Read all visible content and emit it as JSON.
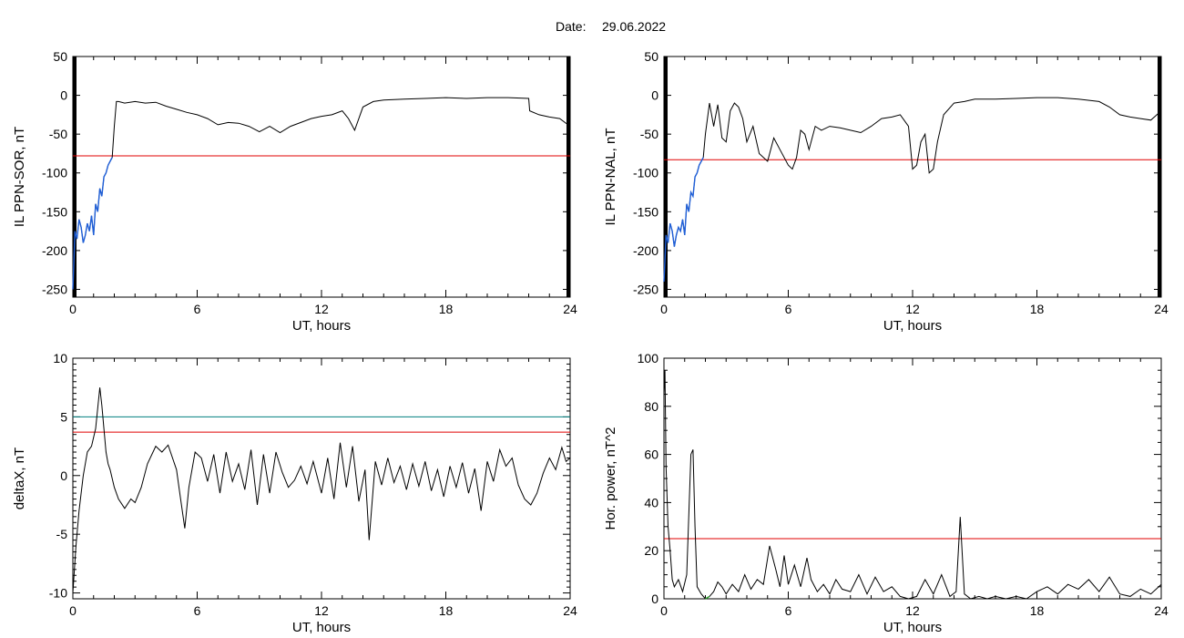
{
  "figure": {
    "title_prefix": "Date:",
    "title_date": "29.06.2022"
  },
  "colors": {
    "data_line": "#000000",
    "blue_segment": "#1f5fd8",
    "green_segment": "#2ca02c",
    "red_threshold": "#e00000",
    "teal_threshold": "#008080"
  },
  "chart_data": [
    {
      "id": "il-sor",
      "type": "line",
      "xlabel": "UT, hours",
      "ylabel": "IL PPN-SOR, nT",
      "xlim": [
        0,
        24
      ],
      "ylim": [
        -260,
        50
      ],
      "xticks": [
        0,
        6,
        12,
        18,
        24
      ],
      "yticks": [
        50,
        0,
        -50,
        -100,
        -150,
        -200,
        -250
      ],
      "hlines": [
        {
          "y": -78,
          "color": "red"
        }
      ],
      "highlight": {
        "color": "blue",
        "x_from": 0,
        "x_to": 1.9
      },
      "x": [
        0,
        0.1,
        0.2,
        0.3,
        0.4,
        0.5,
        0.6,
        0.7,
        0.8,
        0.9,
        1.0,
        1.1,
        1.2,
        1.3,
        1.4,
        1.5,
        1.6,
        1.7,
        1.8,
        1.9,
        2.0,
        2.1,
        2.2,
        2.5,
        3.0,
        3.5,
        4.0,
        4.5,
        5.0,
        5.5,
        6.0,
        6.5,
        7.0,
        7.5,
        8.0,
        8.5,
        9.0,
        9.5,
        10.0,
        10.5,
        11.0,
        11.5,
        12.0,
        12.5,
        13.0,
        13.3,
        13.6,
        14.0,
        14.5,
        15.0,
        16.0,
        17.0,
        18.0,
        19.0,
        20.0,
        21.0,
        22.0,
        22.05,
        22.5,
        23.0,
        23.5,
        24.0
      ],
      "y": [
        -250,
        -175,
        -185,
        -160,
        -170,
        -190,
        -180,
        -165,
        -175,
        -155,
        -180,
        -140,
        -150,
        -120,
        -130,
        -105,
        -100,
        -90,
        -85,
        -80,
        -40,
        -8,
        -8,
        -10,
        -8,
        -10,
        -9,
        -14,
        -18,
        -22,
        -25,
        -30,
        -38,
        -35,
        -36,
        -40,
        -47,
        -40,
        -48,
        -40,
        -35,
        -30,
        -27,
        -25,
        -20,
        -30,
        -45,
        -15,
        -8,
        -6,
        -5,
        -4,
        -3,
        -4,
        -3,
        -3,
        -4,
        -20,
        -25,
        -28,
        -30,
        -40
      ],
      "ticks_step": 0.1
    },
    {
      "id": "il-nal",
      "type": "line",
      "xlabel": "UT, hours",
      "ylabel": "IL PPN-NAL, nT",
      "xlim": [
        0,
        24
      ],
      "ylim": [
        -260,
        50
      ],
      "xticks": [
        0,
        6,
        12,
        18,
        24
      ],
      "yticks": [
        50,
        0,
        -50,
        -100,
        -150,
        -200,
        -250
      ],
      "hlines": [
        {
          "y": -83,
          "color": "red"
        }
      ],
      "highlight": {
        "color": "blue",
        "x_from": 0,
        "x_to": 1.9
      },
      "x": [
        0,
        0.1,
        0.2,
        0.3,
        0.4,
        0.5,
        0.6,
        0.7,
        0.8,
        0.9,
        1.0,
        1.1,
        1.2,
        1.3,
        1.4,
        1.5,
        1.6,
        1.7,
        1.8,
        1.9,
        2.0,
        2.2,
        2.4,
        2.6,
        2.8,
        3.0,
        3.2,
        3.4,
        3.6,
        3.8,
        4.0,
        4.3,
        4.6,
        5.0,
        5.3,
        5.6,
        6.0,
        6.2,
        6.4,
        6.6,
        6.8,
        7.0,
        7.3,
        7.6,
        8.0,
        8.5,
        9.0,
        9.5,
        10.0,
        10.5,
        11.0,
        11.4,
        11.8,
        12.0,
        12.2,
        12.4,
        12.6,
        12.8,
        13.0,
        13.2,
        13.5,
        14.0,
        14.5,
        15.0,
        16.0,
        17.0,
        18.0,
        19.0,
        20.0,
        21.0,
        21.5,
        22.0,
        22.5,
        23.0,
        23.5,
        24.0
      ],
      "y": [
        -240,
        -180,
        -190,
        -165,
        -175,
        -195,
        -180,
        -170,
        -175,
        -160,
        -180,
        -140,
        -150,
        -125,
        -130,
        -105,
        -100,
        -90,
        -85,
        -80,
        -50,
        -10,
        -40,
        -12,
        -55,
        -60,
        -20,
        -10,
        -15,
        -30,
        -60,
        -40,
        -75,
        -85,
        -55,
        -70,
        -90,
        -95,
        -80,
        -45,
        -50,
        -70,
        -40,
        -45,
        -40,
        -42,
        -45,
        -48,
        -40,
        -30,
        -28,
        -25,
        -40,
        -95,
        -90,
        -60,
        -50,
        -100,
        -95,
        -60,
        -25,
        -10,
        -8,
        -5,
        -5,
        -4,
        -3,
        -3,
        -5,
        -8,
        -15,
        -25,
        -28,
        -30,
        -32,
        -20
      ],
      "ticks_step": 0.1
    },
    {
      "id": "deltax",
      "type": "line",
      "xlabel": "UT, hours",
      "ylabel": "deltaX, nT",
      "xlim": [
        0,
        24
      ],
      "ylim": [
        -10.5,
        10
      ],
      "xticks": [
        0,
        6,
        12,
        18,
        24
      ],
      "yticks": [
        10,
        5,
        0,
        -5,
        -10
      ],
      "hlines": [
        {
          "y": 5.0,
          "color": "teal"
        },
        {
          "y": 3.7,
          "color": "red"
        }
      ],
      "x": [
        0,
        0.15,
        0.3,
        0.5,
        0.7,
        0.9,
        1.1,
        1.3,
        1.4,
        1.5,
        1.6,
        1.7,
        1.8,
        2.0,
        2.2,
        2.5,
        2.8,
        3.0,
        3.3,
        3.6,
        4.0,
        4.3,
        4.6,
        5.0,
        5.2,
        5.4,
        5.6,
        5.9,
        6.2,
        6.5,
        6.8,
        7.1,
        7.4,
        7.7,
        8.0,
        8.3,
        8.6,
        8.9,
        9.2,
        9.5,
        9.8,
        10.1,
        10.4,
        10.7,
        11.0,
        11.3,
        11.6,
        12.0,
        12.3,
        12.6,
        12.9,
        13.2,
        13.5,
        13.8,
        14.1,
        14.3,
        14.6,
        14.9,
        15.2,
        15.5,
        15.8,
        16.1,
        16.4,
        16.7,
        17.0,
        17.3,
        17.6,
        17.9,
        18.2,
        18.5,
        18.8,
        19.1,
        19.4,
        19.7,
        20.0,
        20.3,
        20.6,
        20.9,
        21.2,
        21.5,
        21.8,
        22.1,
        22.4,
        22.7,
        23.0,
        23.3,
        23.6,
        23.8,
        24.0
      ],
      "y": [
        -10,
        -6,
        -3,
        0,
        2,
        2.5,
        4,
        7.5,
        6,
        4,
        2,
        1,
        0.5,
        -1,
        -2,
        -2.8,
        -2,
        -2.3,
        -1,
        1,
        2.5,
        2,
        2.6,
        0.5,
        -2,
        -4.5,
        -1,
        2,
        1.5,
        -0.5,
        1.8,
        -1.5,
        2,
        -0.5,
        1,
        -1.2,
        2.2,
        -2.5,
        1.8,
        -1.5,
        2,
        0.3,
        -1,
        -0.4,
        0.8,
        -0.7,
        1.2,
        -1.5,
        1.5,
        -2,
        2.8,
        -1,
        2.5,
        -2.2,
        0.5,
        -5.5,
        1.2,
        -0.8,
        1.5,
        -0.6,
        0.8,
        -1.2,
        1,
        -0.9,
        1.2,
        -1.3,
        0.5,
        -1.8,
        0.8,
        -1,
        1.1,
        -1.5,
        0.6,
        -3,
        1.2,
        -0.5,
        2.2,
        0.8,
        1.5,
        -0.8,
        -2,
        -2.5,
        -1.5,
        0.2,
        1.5,
        0.5,
        2.4,
        1.2,
        1.5
      ],
      "ticks_step": 0.5
    },
    {
      "id": "hor-power",
      "type": "line",
      "xlabel": "UT, hours",
      "ylabel": "Hor. power, nT^2",
      "xlim": [
        0,
        24
      ],
      "ylim": [
        0,
        100
      ],
      "xticks": [
        0,
        6,
        12,
        18,
        24
      ],
      "yticks": [
        100,
        80,
        60,
        40,
        20,
        0
      ],
      "hlines": [
        {
          "y": 25,
          "color": "red"
        }
      ],
      "highlight": {
        "color": "green",
        "x_from": 1.9,
        "x_to": 2.3
      },
      "x": [
        0,
        0.05,
        0.1,
        0.2,
        0.3,
        0.4,
        0.5,
        0.7,
        0.9,
        1.1,
        1.3,
        1.4,
        1.5,
        1.6,
        1.8,
        2.0,
        2.2,
        2.4,
        2.6,
        2.8,
        3.0,
        3.3,
        3.6,
        3.9,
        4.2,
        4.5,
        4.8,
        5.1,
        5.4,
        5.6,
        5.8,
        6.0,
        6.3,
        6.6,
        6.9,
        7.1,
        7.4,
        7.7,
        8.0,
        8.3,
        8.6,
        9.0,
        9.4,
        9.8,
        10.2,
        10.6,
        11.0,
        11.4,
        11.8,
        12.2,
        12.6,
        13.0,
        13.4,
        13.8,
        14.1,
        14.3,
        14.5,
        14.8,
        15.2,
        15.6,
        16.0,
        16.5,
        17.0,
        17.5,
        18.0,
        18.5,
        19.0,
        19.5,
        20.0,
        20.5,
        21.0,
        21.5,
        22.0,
        22.5,
        23.0,
        23.5,
        24.0
      ],
      "y": [
        85,
        95,
        55,
        30,
        20,
        8,
        5,
        8,
        3,
        10,
        60,
        62,
        30,
        5,
        2,
        0,
        1,
        3,
        7,
        5,
        2,
        6,
        3,
        10,
        4,
        8,
        6,
        22,
        12,
        5,
        18,
        6,
        14,
        5,
        17,
        8,
        3,
        6,
        2,
        8,
        4,
        3,
        10,
        2,
        9,
        3,
        5,
        1,
        0,
        1,
        8,
        2,
        10,
        1,
        3,
        34,
        2,
        0,
        1,
        0,
        1,
        0,
        1,
        0,
        3,
        5,
        2,
        6,
        4,
        8,
        3,
        9,
        2,
        1,
        4,
        2,
        6
      ],
      "ticks_step": 5
    }
  ]
}
